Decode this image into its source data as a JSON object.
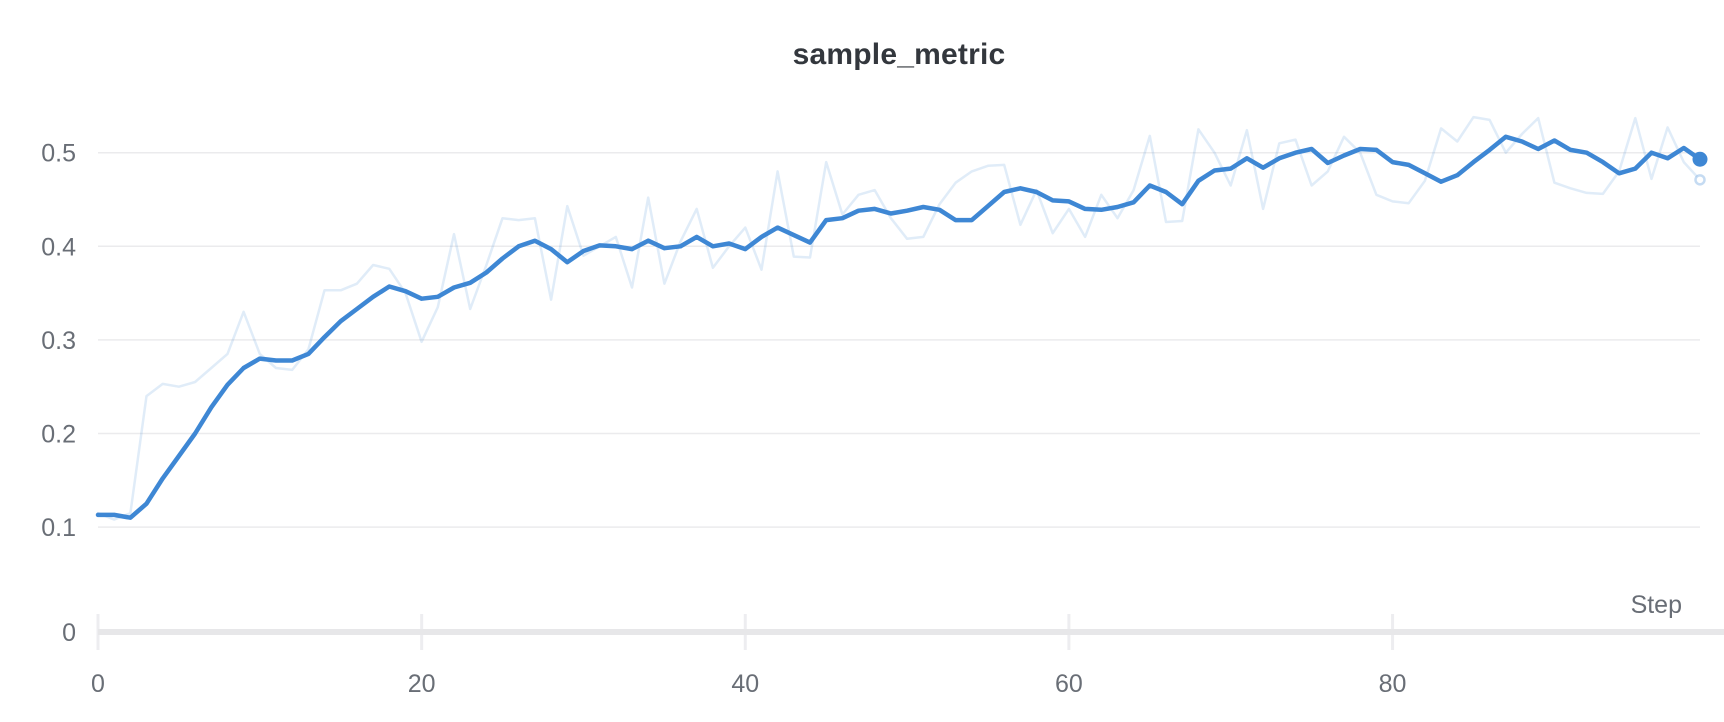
{
  "panel": {
    "title": "sample_metric"
  },
  "colors": {
    "accent_blue": "#3e87d4",
    "raw_line_opacity": 0.16,
    "gridline": "#ebebed",
    "axis_bar": "#e7e7e9",
    "tick_mark": "#ededf0",
    "tick_label": "#696e76",
    "title_text": "#33373d",
    "background": "#ffffff"
  },
  "chart_data": {
    "type": "line",
    "title": "sample_metric",
    "xlabel": "Step",
    "ylabel": "",
    "xlim": [
      0,
      99
    ],
    "ylim": [
      0,
      0.55
    ],
    "grid": "horizontal",
    "legend": "none",
    "x_ticks": [
      0,
      20,
      40,
      60,
      80
    ],
    "x_tick_labels": [
      "0",
      "20",
      "40",
      "60",
      "80"
    ],
    "y_ticks": [
      0,
      0.1,
      0.2,
      0.3,
      0.4,
      0.5
    ],
    "y_tick_labels": [
      "0",
      "0.1",
      "0.2",
      "0.3",
      "0.4",
      "0.5"
    ],
    "x": [
      0,
      1,
      2,
      3,
      4,
      5,
      6,
      7,
      8,
      9,
      10,
      11,
      12,
      13,
      14,
      15,
      16,
      17,
      18,
      19,
      20,
      21,
      22,
      23,
      24,
      25,
      26,
      27,
      28,
      29,
      30,
      31,
      32,
      33,
      34,
      35,
      36,
      37,
      38,
      39,
      40,
      41,
      42,
      43,
      44,
      45,
      46,
      47,
      48,
      49,
      50,
      51,
      52,
      53,
      54,
      55,
      56,
      57,
      58,
      59,
      60,
      61,
      62,
      63,
      64,
      65,
      66,
      67,
      68,
      69,
      70,
      71,
      72,
      73,
      74,
      75,
      76,
      77,
      78,
      79,
      80,
      81,
      82,
      83,
      84,
      85,
      86,
      87,
      88,
      89,
      90,
      91,
      92,
      93,
      94,
      95,
      96,
      97,
      98,
      99
    ],
    "series": [
      {
        "role": "raw",
        "name": "sample_metric",
        "color": "#3e87d4",
        "opacity": 0.16,
        "width": 2.5,
        "values": [
          0.115,
          0.108,
          0.115,
          0.24,
          0.253,
          0.25,
          0.255,
          0.27,
          0.285,
          0.33,
          0.285,
          0.27,
          0.268,
          0.29,
          0.353,
          0.353,
          0.36,
          0.38,
          0.376,
          0.35,
          0.298,
          0.335,
          0.413,
          0.333,
          0.38,
          0.43,
          0.428,
          0.43,
          0.343,
          0.443,
          0.39,
          0.4,
          0.41,
          0.356,
          0.452,
          0.36,
          0.405,
          0.44,
          0.377,
          0.4,
          0.42,
          0.375,
          0.48,
          0.389,
          0.388,
          0.49,
          0.434,
          0.455,
          0.46,
          0.43,
          0.408,
          0.41,
          0.445,
          0.468,
          0.48,
          0.486,
          0.487,
          0.423,
          0.46,
          0.414,
          0.44,
          0.41,
          0.455,
          0.43,
          0.46,
          0.518,
          0.426,
          0.427,
          0.525,
          0.5,
          0.465,
          0.524,
          0.44,
          0.51,
          0.514,
          0.465,
          0.48,
          0.517,
          0.5,
          0.455,
          0.448,
          0.446,
          0.47,
          0.526,
          0.512,
          0.538,
          0.535,
          0.5,
          0.52,
          0.537,
          0.468,
          0.462,
          0.457,
          0.456,
          0.48,
          0.537,
          0.472,
          0.527,
          0.49,
          0.471
        ]
      },
      {
        "role": "smoothed",
        "name": "sample_metric",
        "color": "#3e87d4",
        "opacity": 1,
        "width": 4.5,
        "values": [
          0.113,
          0.113,
          0.11,
          0.125,
          0.152,
          0.176,
          0.2,
          0.228,
          0.252,
          0.27,
          0.28,
          0.278,
          0.278,
          0.285,
          0.303,
          0.32,
          0.333,
          0.346,
          0.357,
          0.352,
          0.344,
          0.346,
          0.356,
          0.361,
          0.372,
          0.387,
          0.4,
          0.406,
          0.397,
          0.383,
          0.395,
          0.401,
          0.4,
          0.397,
          0.406,
          0.398,
          0.4,
          0.41,
          0.4,
          0.403,
          0.397,
          0.41,
          0.42,
          0.412,
          0.404,
          0.428,
          0.43,
          0.438,
          0.44,
          0.435,
          0.438,
          0.442,
          0.439,
          0.428,
          0.428,
          0.443,
          0.458,
          0.462,
          0.458,
          0.449,
          0.448,
          0.44,
          0.439,
          0.442,
          0.447,
          0.465,
          0.458,
          0.445,
          0.47,
          0.481,
          0.483,
          0.494,
          0.484,
          0.494,
          0.5,
          0.504,
          0.489,
          0.497,
          0.504,
          0.503,
          0.49,
          0.487,
          0.478,
          0.469,
          0.476,
          0.49,
          0.503,
          0.517,
          0.512,
          0.504,
          0.513,
          0.503,
          0.5,
          0.49,
          0.478,
          0.483,
          0.5,
          0.494,
          0.505,
          0.493
        ]
      }
    ],
    "endpoint_markers": {
      "smoothed": {
        "x": 99,
        "y": 0.493
      },
      "raw": {
        "x": 99,
        "y": 0.471
      }
    }
  }
}
